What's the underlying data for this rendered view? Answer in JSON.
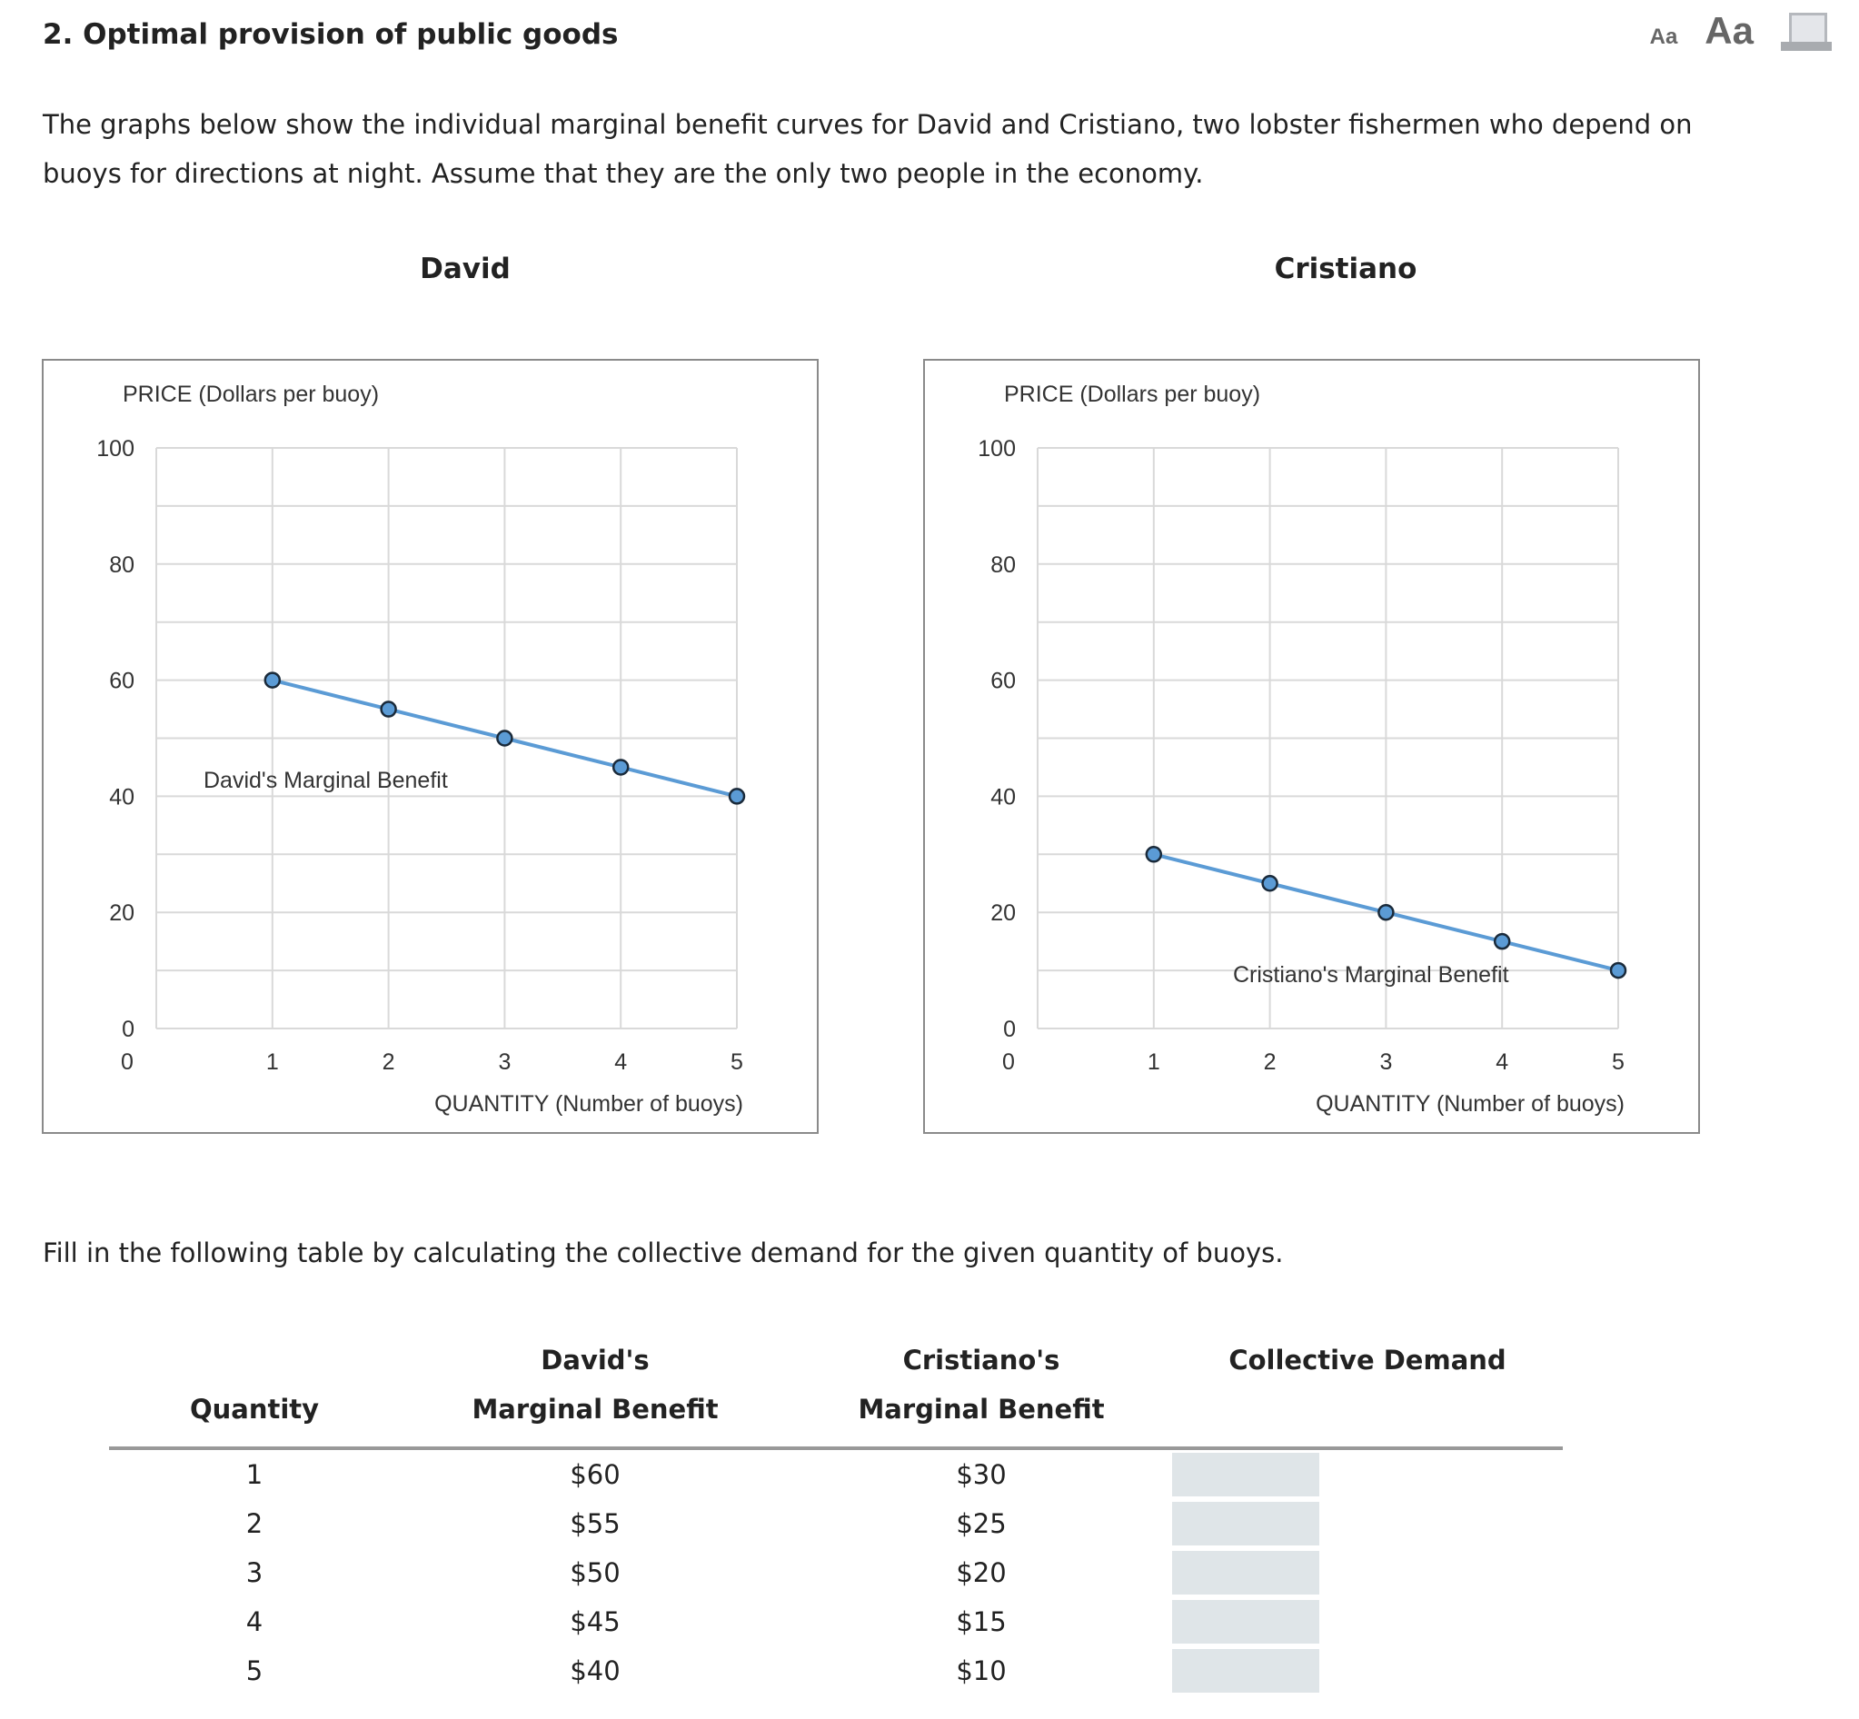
{
  "header": {
    "title": "2. Optimal provision of public goods",
    "tools": [
      {
        "label": "Aa",
        "icon": "text-size-small-icon"
      },
      {
        "label": "Aa",
        "icon": "text-size-large-icon"
      },
      {
        "icon": "print-icon"
      }
    ]
  },
  "intro": "The graphs below show the individual marginal benefit curves for David and Cristiano, two lobster fishermen who depend on buoys for directions at night. Assume that they are the only two people in the economy.",
  "chart_data": [
    {
      "type": "line",
      "title": "David",
      "xlabel": "QUANTITY (Number of buoys)",
      "ylabel": "PRICE (Dollars per buoy)",
      "xlim": [
        0,
        5
      ],
      "ylim": [
        0,
        100
      ],
      "xticks": [
        "0",
        "1",
        "2",
        "3",
        "4",
        "5"
      ],
      "yticks": [
        "0",
        "20",
        "40",
        "60",
        "80",
        "100"
      ],
      "grid": true,
      "line_color": "#5b9bd5",
      "series": [
        {
          "name": "David's Marginal Benefit",
          "x": [
            1,
            2,
            3,
            4,
            5
          ],
          "y": [
            60,
            55,
            50,
            45,
            40
          ]
        }
      ]
    },
    {
      "type": "line",
      "title": "Cristiano",
      "xlabel": "QUANTITY (Number of buoys)",
      "ylabel": "PRICE (Dollars per buoy)",
      "xlim": [
        0,
        5
      ],
      "ylim": [
        0,
        100
      ],
      "xticks": [
        "0",
        "1",
        "2",
        "3",
        "4",
        "5"
      ],
      "yticks": [
        "0",
        "20",
        "40",
        "60",
        "80",
        "100"
      ],
      "grid": true,
      "line_color": "#5b9bd5",
      "series": [
        {
          "name": "Cristiano's Marginal Benefit",
          "x": [
            1,
            2,
            3,
            4,
            5
          ],
          "y": [
            30,
            25,
            20,
            15,
            10
          ]
        }
      ]
    }
  ],
  "instructions": "Fill in the following table by calculating the collective demand for the given quantity of buoys.",
  "table": {
    "headers": [
      [
        "",
        "Quantity"
      ],
      [
        "David's",
        "Marginal Benefit"
      ],
      [
        "Cristiano's",
        "Marginal Benefit"
      ],
      [
        "Collective Demand",
        ""
      ]
    ],
    "rows": [
      {
        "q": "1",
        "d": "$60",
        "c": "$30",
        "cd": ""
      },
      {
        "q": "2",
        "d": "$55",
        "c": "$25",
        "cd": ""
      },
      {
        "q": "3",
        "d": "$50",
        "c": "$20",
        "cd": ""
      },
      {
        "q": "4",
        "d": "$45",
        "c": "$15",
        "cd": ""
      },
      {
        "q": "5",
        "d": "$40",
        "c": "$10",
        "cd": ""
      }
    ]
  }
}
